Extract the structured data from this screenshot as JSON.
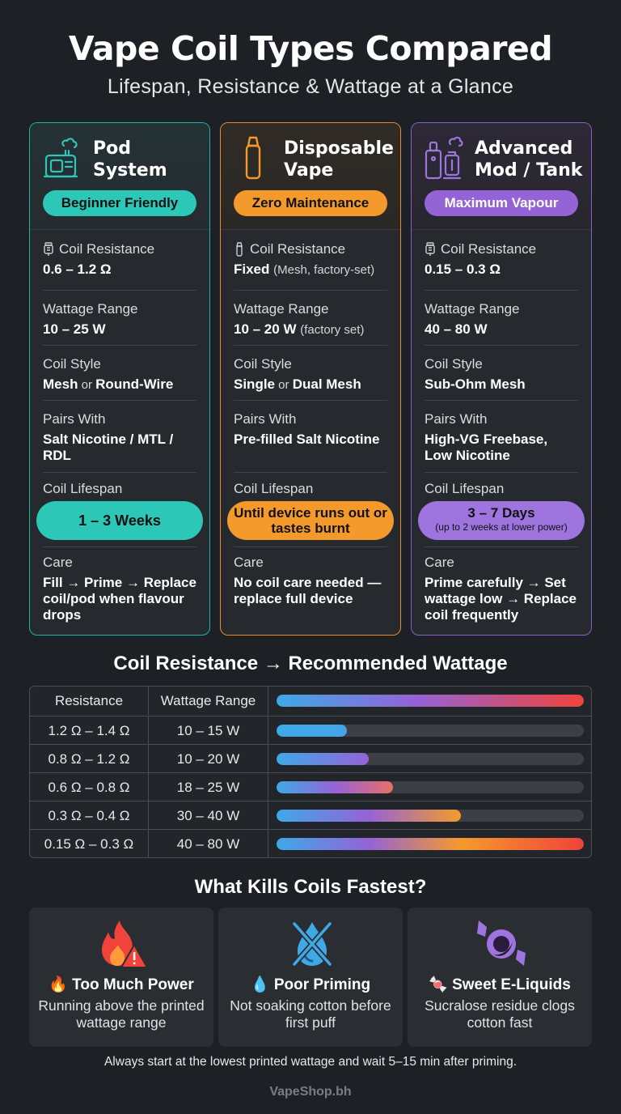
{
  "title": "Vape Coil Types Compared",
  "subtitle": "Lifespan, Resistance & Wattage at a Glance",
  "cards": [
    {
      "icon": "pod-system-icon",
      "title_line1": "Pod",
      "title_line2": "System",
      "badge": "Beginner Friendly",
      "resistance_label": "Coil Resistance",
      "resistance_value": "0.6 – 1.2 Ω",
      "resistance_note": "",
      "wattage_label": "Wattage Range",
      "wattage_value": "10 – 25 W",
      "wattage_note": "",
      "style_label": "Coil Style",
      "style_value_a": "Mesh",
      "style_value_join": " or ",
      "style_value_b": "Round-Wire",
      "pairs_label": "Pairs With",
      "pairs_value": "Salt Nicotine / MTL / RDL",
      "lifespan_label": "Coil Lifespan",
      "lifespan_value": "1 – 3 Weeks",
      "lifespan_note": "",
      "care_label": "Care",
      "care_value": "Fill → Prime → Replace coil/pod when flavour drops"
    },
    {
      "icon": "disposable-vape-icon",
      "title_line1": "Disposable",
      "title_line2": "Vape",
      "badge": "Zero Maintenance",
      "resistance_label": "Coil Resistance",
      "resistance_value": "Fixed",
      "resistance_note": "(Mesh, factory-set)",
      "wattage_label": "Wattage Range",
      "wattage_value": "10 – 20 W",
      "wattage_note": "(factory set)",
      "style_label": "Coil Style",
      "style_value_a": "Single",
      "style_value_join": " or ",
      "style_value_b": "Dual Mesh",
      "pairs_label": "Pairs With",
      "pairs_value": "Pre-filled Salt Nicotine",
      "lifespan_label": "Coil Lifespan",
      "lifespan_value": "Until device runs out or tastes burnt",
      "lifespan_note": "",
      "care_label": "Care",
      "care_value": "No coil care needed — replace full device"
    },
    {
      "icon": "advanced-mod-icon",
      "title_line1": "Advanced",
      "title_line2": "Mod / Tank",
      "badge": "Maximum Vapour",
      "resistance_label": "Coil Resistance",
      "resistance_value": "0.15 – 0.3 Ω",
      "resistance_note": "",
      "wattage_label": "Wattage Range",
      "wattage_value": "40 – 80 W",
      "wattage_note": "",
      "style_label": "Coil Style",
      "style_value_a": "Sub-Ohm Mesh",
      "style_value_join": "",
      "style_value_b": "",
      "pairs_label": "Pairs With",
      "pairs_value": "High-VG Freebase, Low Nicotine",
      "lifespan_label": "Coil Lifespan",
      "lifespan_value": "3 – 7 Days",
      "lifespan_note": "(up to 2 weeks at lower power)",
      "care_label": "Care",
      "care_value": "Prime carefully → Set wattage low → Replace coil frequently"
    }
  ],
  "table": {
    "title": "Coil Resistance → Recommended Wattage",
    "col_resistance": "Resistance",
    "col_wattage": "Wattage Range",
    "rows": [
      {
        "resistance": "1.2 Ω – 1.4 Ω",
        "wattage": "10 – 15 W",
        "level": 0.23
      },
      {
        "resistance": "0.8 Ω – 1.2 Ω",
        "wattage": "10 – 20 W",
        "level": 0.3
      },
      {
        "resistance": "0.6 Ω – 0.8 Ω",
        "wattage": "18 – 25 W",
        "level": 0.38
      },
      {
        "resistance": "0.3 Ω – 0.4 Ω",
        "wattage": "30 – 40 W",
        "level": 0.6
      },
      {
        "resistance": "0.15 Ω – 0.3 Ω",
        "wattage": "40 – 80 W",
        "level": 1.0
      }
    ]
  },
  "kills": {
    "title": "What Kills Coils Fastest?",
    "items": [
      {
        "icon": "fire-warning-icon",
        "emoji": "🔥",
        "title": "Too Much Power",
        "text": "Running above the printed wattage range"
      },
      {
        "icon": "no-drop-icon",
        "emoji": "💧",
        "title": "Poor Priming",
        "text": "Not soaking cotton before first puff"
      },
      {
        "icon": "candy-icon",
        "emoji": "🍬",
        "title": "Sweet E-Liquids",
        "text": "Sucralose residue clogs cotton fast"
      }
    ]
  },
  "footnote": "Always start at the lowest printed wattage and wait 5–15 min after priming.",
  "brand": "VapeShop.bh",
  "colors": {
    "teal": "#2cc7b6",
    "orange": "#f49a2c",
    "purple": "#9463d6",
    "red": "#f0433a",
    "blue": "#3fa9e6"
  }
}
